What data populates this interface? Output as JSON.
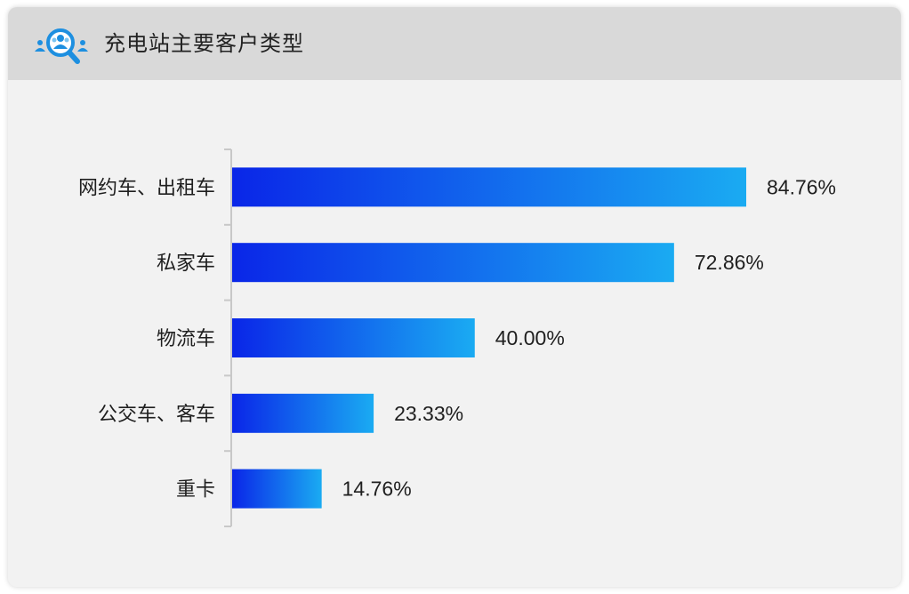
{
  "header": {
    "title": "充电站主要客户类型",
    "icon": "customer-search-icon"
  },
  "colors": {
    "bar_start": "#0a26e8",
    "bar_end": "#1aabf2",
    "header_bg": "#d9d9d9",
    "card_bg": "#f2f2f2",
    "icon_blue": "#1d8fe0"
  },
  "chart_data": {
    "type": "bar",
    "orientation": "horizontal",
    "categories": [
      "网约车、出租车",
      "私家车",
      "物流车",
      "公交车、客车",
      "重卡"
    ],
    "values": [
      84.76,
      72.86,
      40.0,
      23.33,
      14.76
    ],
    "value_labels": [
      "84.76%",
      "72.86%",
      "40.00%",
      "23.33%",
      "14.76%"
    ],
    "unit": "%",
    "xlim": [
      0,
      100
    ],
    "grid": false,
    "legend": "none"
  }
}
